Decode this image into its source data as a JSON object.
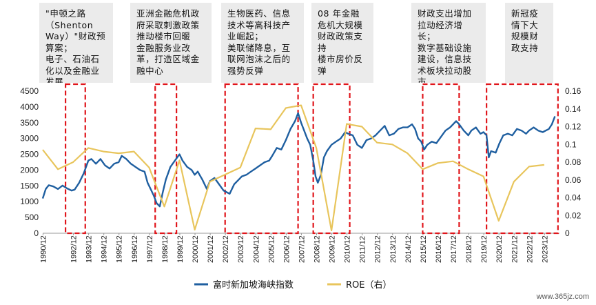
{
  "annotations": [
    {
      "text": "\"申顿之路\n（Shenton\nWay）\"财政预\n算案；\n电子、石油石\n化以及金融业\n发展"
    },
    {
      "text": "亚洲金融危机政\n府采取刺激政策\n推动楼市回暖\n金融服务业改\n革，打造区域金\n融中心"
    },
    {
      "text": "生物医药、信息\n技术等高科技产\n业崛起；\n美联储降息，互\n联网泡沫之后的\n强势反弹"
    },
    {
      "text": "08 年金融\n危机大规模\n财政政策支\n持\n楼市房价反\n弹"
    },
    {
      "text": "财政支出增加\n拉动经济增\n长；\n数字基础设施\n建设，信息技\n术板块拉动股\n市"
    },
    {
      "text": "新冠疫\n情下大\n规模财\n政支持"
    }
  ],
  "watermark": "www.365jz.com",
  "chart_data": {
    "type": "line",
    "x_categories": [
      "1990/12",
      "1992/12",
      "1993/12",
      "1994/12",
      "1995/12",
      "1996/12",
      "1997/12",
      "1998/12",
      "1999/12",
      "2000/12",
      "2001/12",
      "2002/12",
      "2003/12",
      "2004/12",
      "2005/12",
      "2006/12",
      "2007/12",
      "2008/12",
      "2009/12",
      "2010/12",
      "2011/12",
      "2012/12",
      "2013/12",
      "2014/12",
      "2015/12",
      "2016/12",
      "2017/12",
      "2018/12",
      "2019/12",
      "2020/12",
      "2021/12",
      "2022/12",
      "2023/12"
    ],
    "y_left": {
      "min": 0,
      "max": 4500,
      "ticks": [
        "0",
        "500",
        "1000",
        "1500",
        "2000",
        "2500",
        "3000",
        "3500",
        "4000",
        "4500"
      ]
    },
    "y_right": {
      "min": 0,
      "max": 0.16,
      "ticks": [
        "0",
        "0.02",
        "0.04",
        "0.06",
        "0.08",
        "0.1",
        "0.12",
        "0.14",
        "0.16"
      ]
    },
    "series": [
      {
        "name": "富时新加坡海峡指数",
        "axis": "left",
        "color": "#1f5fa0",
        "points": [
          [
            1990.9,
            1100
          ],
          [
            1991.1,
            1400
          ],
          [
            1991.3,
            1520
          ],
          [
            1991.6,
            1480
          ],
          [
            1991.9,
            1400
          ],
          [
            1992.2,
            1510
          ],
          [
            1992.5,
            1420
          ],
          [
            1992.8,
            1350
          ],
          [
            1993.0,
            1380
          ],
          [
            1993.3,
            1600
          ],
          [
            1993.6,
            1900
          ],
          [
            1993.9,
            2300
          ],
          [
            1994.1,
            2350
          ],
          [
            1994.4,
            2200
          ],
          [
            1994.7,
            2350
          ],
          [
            1995.0,
            2150
          ],
          [
            1995.3,
            2050
          ],
          [
            1995.6,
            2200
          ],
          [
            1995.9,
            2250
          ],
          [
            1996.1,
            2450
          ],
          [
            1996.4,
            2350
          ],
          [
            1996.7,
            2200
          ],
          [
            1997.0,
            2100
          ],
          [
            1997.3,
            2000
          ],
          [
            1997.6,
            1950
          ],
          [
            1997.8,
            1600
          ],
          [
            1998.0,
            1400
          ],
          [
            1998.2,
            1200
          ],
          [
            1998.4,
            950
          ],
          [
            1998.6,
            850
          ],
          [
            1998.8,
            1300
          ],
          [
            1999.0,
            1700
          ],
          [
            1999.3,
            2100
          ],
          [
            1999.6,
            2300
          ],
          [
            1999.9,
            2500
          ],
          [
            2000.1,
            2300
          ],
          [
            2000.4,
            2100
          ],
          [
            2000.7,
            2000
          ],
          [
            2000.9,
            1850
          ],
          [
            2001.1,
            1950
          ],
          [
            2001.4,
            1700
          ],
          [
            2001.7,
            1400
          ],
          [
            2001.9,
            1650
          ],
          [
            2002.2,
            1750
          ],
          [
            2002.5,
            1550
          ],
          [
            2002.8,
            1350
          ],
          [
            2003.0,
            1300
          ],
          [
            2003.2,
            1250
          ],
          [
            2003.5,
            1550
          ],
          [
            2003.8,
            1700
          ],
          [
            2004.0,
            1800
          ],
          [
            2004.3,
            1850
          ],
          [
            2004.6,
            1950
          ],
          [
            2004.9,
            2050
          ],
          [
            2005.2,
            2150
          ],
          [
            2005.5,
            2250
          ],
          [
            2005.8,
            2300
          ],
          [
            2006.0,
            2450
          ],
          [
            2006.3,
            2700
          ],
          [
            2006.6,
            2650
          ],
          [
            2006.9,
            2950
          ],
          [
            2007.2,
            3300
          ],
          [
            2007.5,
            3550
          ],
          [
            2007.7,
            3800
          ],
          [
            2007.9,
            3500
          ],
          [
            2008.1,
            3250
          ],
          [
            2008.3,
            3000
          ],
          [
            2008.5,
            2800
          ],
          [
            2008.7,
            2300
          ],
          [
            2008.85,
            1800
          ],
          [
            2009.0,
            1600
          ],
          [
            2009.2,
            1850
          ],
          [
            2009.4,
            2400
          ],
          [
            2009.6,
            2600
          ],
          [
            2009.9,
            2800
          ],
          [
            2010.2,
            2900
          ],
          [
            2010.5,
            3000
          ],
          [
            2010.8,
            3200
          ],
          [
            2011.0,
            3150
          ],
          [
            2011.3,
            3100
          ],
          [
            2011.6,
            2800
          ],
          [
            2011.9,
            2700
          ],
          [
            2012.2,
            2950
          ],
          [
            2012.5,
            3000
          ],
          [
            2012.8,
            3100
          ],
          [
            2013.1,
            3250
          ],
          [
            2013.4,
            3400
          ],
          [
            2013.7,
            3100
          ],
          [
            2014.0,
            3150
          ],
          [
            2014.3,
            3300
          ],
          [
            2014.6,
            3350
          ],
          [
            2014.9,
            3350
          ],
          [
            2015.2,
            3450
          ],
          [
            2015.4,
            3300
          ],
          [
            2015.6,
            3000
          ],
          [
            2015.8,
            2900
          ],
          [
            2016.0,
            2650
          ],
          [
            2016.2,
            2800
          ],
          [
            2016.5,
            2900
          ],
          [
            2016.8,
            2850
          ],
          [
            2017.1,
            3050
          ],
          [
            2017.4,
            3250
          ],
          [
            2017.7,
            3350
          ],
          [
            2017.9,
            3450
          ],
          [
            2018.1,
            3550
          ],
          [
            2018.3,
            3450
          ],
          [
            2018.6,
            3250
          ],
          [
            2018.9,
            3100
          ],
          [
            2019.1,
            3250
          ],
          [
            2019.4,
            3350
          ],
          [
            2019.7,
            3150
          ],
          [
            2019.9,
            3200
          ],
          [
            2020.1,
            3100
          ],
          [
            2020.25,
            2400
          ],
          [
            2020.4,
            2600
          ],
          [
            2020.7,
            2550
          ],
          [
            2020.95,
            2850
          ],
          [
            2021.2,
            3100
          ],
          [
            2021.5,
            3150
          ],
          [
            2021.8,
            3100
          ],
          [
            2022.1,
            3300
          ],
          [
            2022.4,
            3250
          ],
          [
            2022.7,
            3150
          ],
          [
            2022.9,
            3250
          ],
          [
            2023.2,
            3350
          ],
          [
            2023.5,
            3250
          ],
          [
            2023.8,
            3200
          ],
          [
            2024.0,
            3250
          ],
          [
            2024.2,
            3300
          ],
          [
            2024.4,
            3450
          ],
          [
            2024.6,
            3700
          ]
        ]
      },
      {
        "name": "ROE（右）",
        "axis": "right",
        "color": "#e8c55c",
        "points": [
          [
            1990.9,
            0.094
          ],
          [
            1991.9,
            0.072
          ],
          [
            1992.9,
            0.08
          ],
          [
            1993.9,
            0.096
          ],
          [
            1994.9,
            0.092
          ],
          [
            1995.9,
            0.09
          ],
          [
            1996.9,
            0.092
          ],
          [
            1997.9,
            0.074
          ],
          [
            1998.9,
            0.03
          ],
          [
            1999.9,
            0.082
          ],
          [
            2000.9,
            0.004
          ],
          [
            2001.9,
            0.058
          ],
          [
            2002.9,
            0.066
          ],
          [
            2003.9,
            0.074
          ],
          [
            2004.9,
            0.118
          ],
          [
            2005.9,
            0.117
          ],
          [
            2006.9,
            0.141
          ],
          [
            2007.9,
            0.144
          ],
          [
            2008.9,
            0.096
          ],
          [
            2009.9,
            0.003
          ],
          [
            2010.9,
            0.123
          ],
          [
            2011.9,
            0.12
          ],
          [
            2012.9,
            0.102
          ],
          [
            2013.9,
            0.1
          ],
          [
            2014.9,
            0.09
          ],
          [
            2015.9,
            0.072
          ],
          [
            2016.9,
            0.079
          ],
          [
            2017.9,
            0.081
          ],
          [
            2018.9,
            0.072
          ],
          [
            2019.9,
            0.064
          ],
          [
            2020.9,
            0.014
          ],
          [
            2021.9,
            0.058
          ],
          [
            2022.9,
            0.075
          ],
          [
            2023.9,
            0.077
          ]
        ]
      }
    ],
    "highlight_periods": [
      [
        "1992.4",
        "1993.7"
      ],
      [
        "1998.3",
        "1999.7"
      ],
      [
        "2002.9",
        "2007.7"
      ],
      [
        "2008.7",
        "2011.1"
      ],
      [
        "2015.9",
        "2018.3"
      ],
      [
        "2020.1",
        "2024.8"
      ]
    ],
    "legend": [
      "富时新加坡海峡指数",
      "ROE（右）"
    ],
    "legend_position": "bottom"
  }
}
